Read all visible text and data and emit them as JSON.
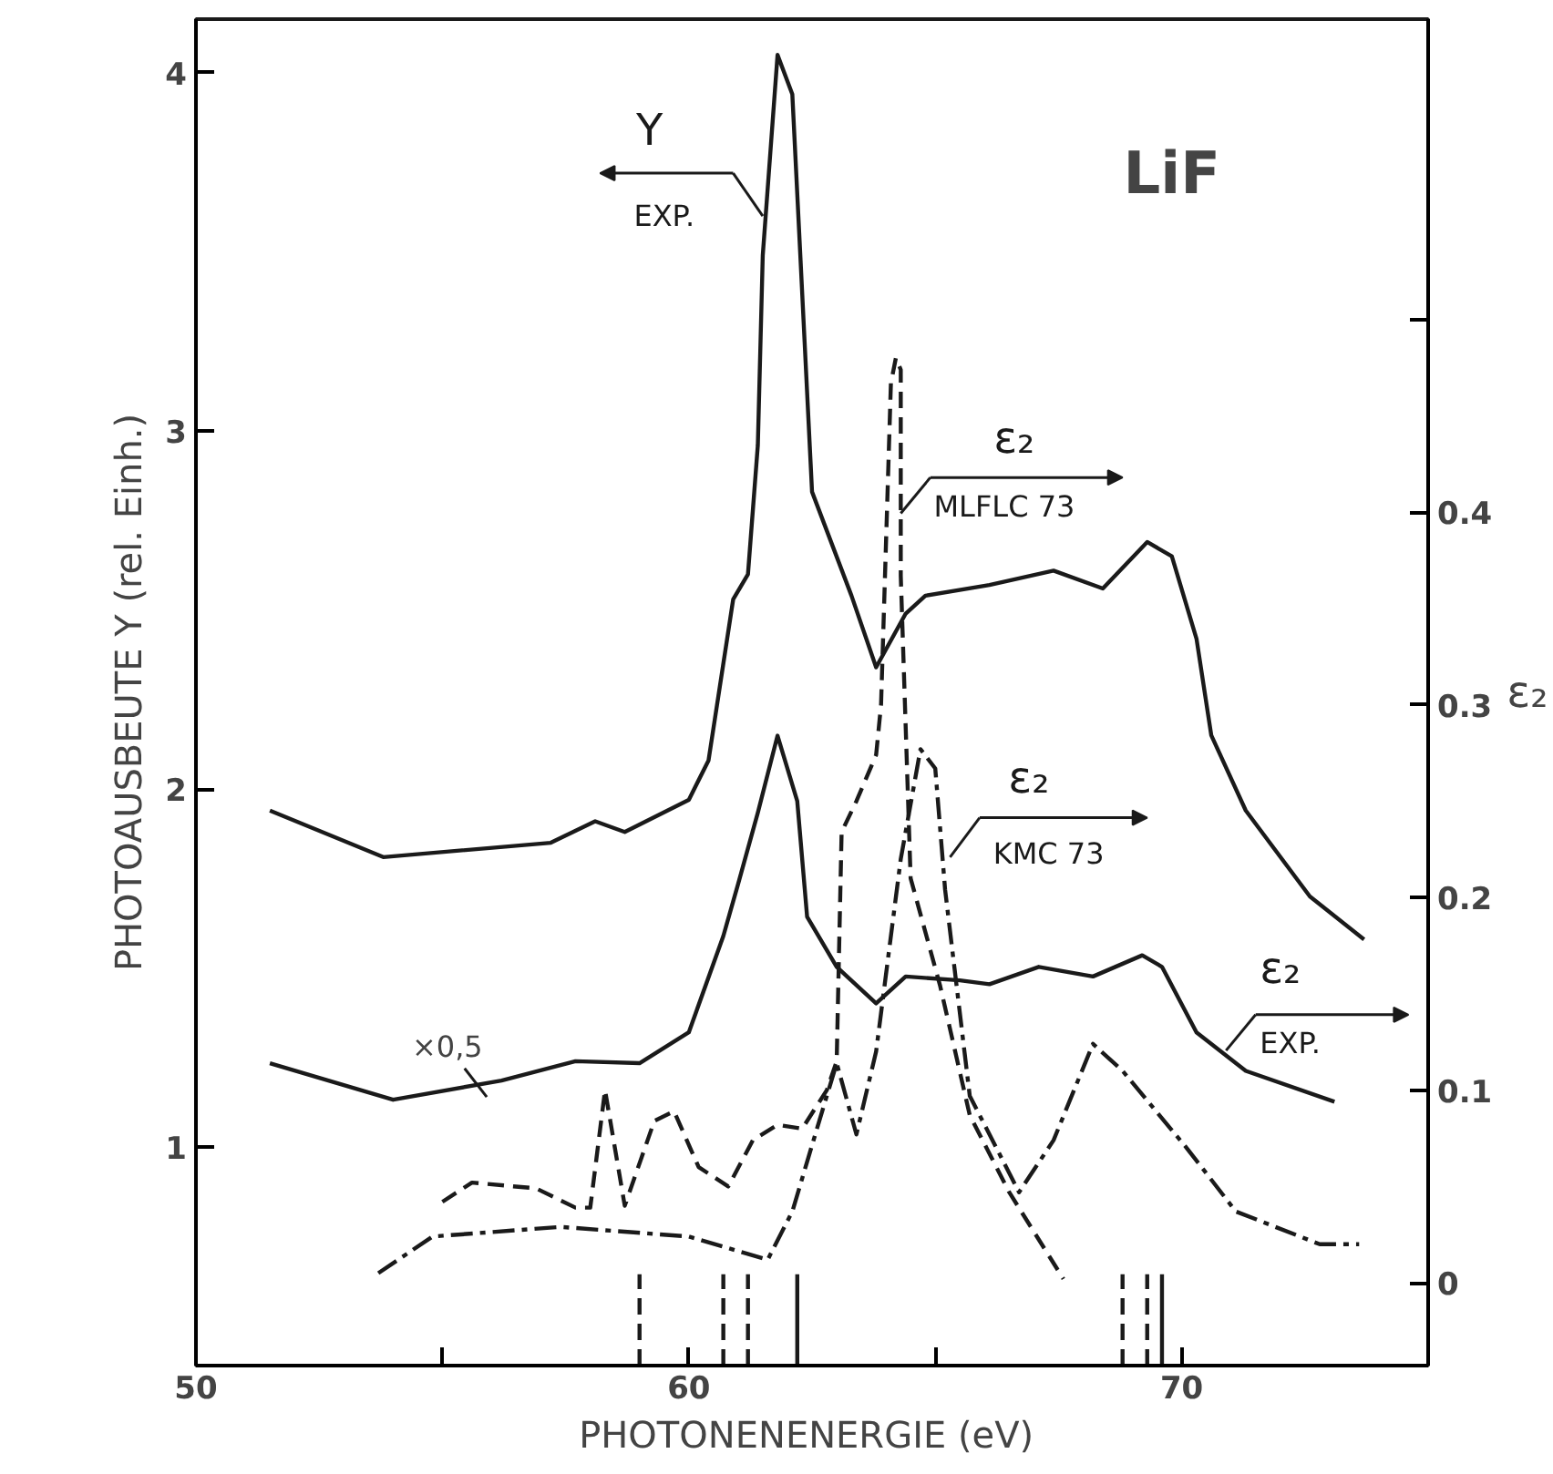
{
  "chart_data": {
    "type": "line",
    "title": "LiF",
    "xlabel": "PHOTONENENERGIE  (eV)",
    "ylabel": "PHOTOAUSBEUTE Y (rel. Einh.)",
    "y2label": "ε₂",
    "xlim": [
      50,
      75
    ],
    "xticks": [
      50,
      {
        "value": 55,
        "label": null
      },
      60,
      {
        "value": 65,
        "label": null
      },
      70
    ],
    "ylim": [
      0.39,
      4.15
    ],
    "yticks": [
      1,
      2,
      3,
      4
    ],
    "y2lim": [
      -0.043,
      0.656
    ],
    "y2ticks": [
      0,
      0.1,
      0.2,
      0.3,
      0.4,
      {
        "value": 0.5,
        "label": null
      }
    ],
    "grid": false,
    "legend": "top right",
    "marker": "none",
    "annotations": [
      "×0,5"
    ],
    "series": [
      {
        "name": "Y EXP.",
        "color": "#1a1a1a",
        "line_style": "solid",
        "x": [
          51.5,
          53.8,
          57.2,
          58.1,
          58.7,
          60.0,
          60.4,
          60.9,
          61.2,
          61.4,
          61.5,
          61.8,
          62.1,
          62.5,
          63.3,
          63.8,
          64.4,
          64.8,
          66.1,
          67.4,
          68.4,
          69.3,
          69.8,
          70.3,
          70.6,
          71.3,
          72.6,
          73.7
        ],
        "values": [
          1.94,
          1.81,
          1.85,
          1.91,
          1.88,
          1.97,
          2.08,
          2.53,
          2.6,
          2.96,
          3.49,
          4.05,
          3.94,
          2.83,
          2.54,
          2.34,
          2.49,
          2.54,
          2.57,
          2.61,
          2.56,
          2.69,
          2.65,
          2.42,
          2.15,
          1.94,
          1.7,
          1.58
        ]
      },
      {
        "name": "ε₂ MLFLC 73",
        "color": "#1a1a1a",
        "axis": "y2",
        "line_style": "dashed",
        "x": [
          55.0,
          55.6,
          56.9,
          57.7,
          58.0,
          58.3,
          58.7,
          59.3,
          59.7,
          60.2,
          60.8,
          61.3,
          61.8,
          62.3,
          62.8,
          63.0,
          63.1,
          63.4,
          63.8,
          63.9,
          64.1,
          64.2,
          64.3,
          64.3,
          64.5,
          65.1,
          65.7,
          66.5,
          67.6
        ],
        "values": [
          0.042,
          0.052,
          0.049,
          0.039,
          0.039,
          0.1,
          0.04,
          0.084,
          0.089,
          0.06,
          0.05,
          0.074,
          0.082,
          0.08,
          0.1,
          0.115,
          0.234,
          0.25,
          0.274,
          0.3,
          0.467,
          0.48,
          0.474,
          0.367,
          0.21,
          0.154,
          0.087,
          0.047,
          0.002
        ]
      },
      {
        "name": "ε₂ KMC 73",
        "color": "#1a1a1a",
        "axis": "y2",
        "line_style": "dashdot",
        "x": [
          53.7,
          54.8,
          57.4,
          60.0,
          61.6,
          62.1,
          62.6,
          63.0,
          63.4,
          63.8,
          64.3,
          64.7,
          65.0,
          65.2,
          65.7,
          66.7,
          67.4,
          68.2,
          68.8,
          70.1,
          71.1,
          72.8,
          73.6
        ],
        "values": [
          0.005,
          0.024,
          0.029,
          0.024,
          0.012,
          0.037,
          0.08,
          0.114,
          0.077,
          0.12,
          0.22,
          0.277,
          0.267,
          0.204,
          0.097,
          0.047,
          0.074,
          0.124,
          0.11,
          0.07,
          0.037,
          0.02,
          0.02
        ]
      },
      {
        "name": "ε₂ EXP.",
        "color": "#1a1a1a",
        "axis": "y2",
        "line_style": "solid",
        "x": [
          51.5,
          54.0,
          56.2,
          57.7,
          59.0,
          60.0,
          60.7,
          61.0,
          61.4,
          61.8,
          62.2,
          62.4,
          63.0,
          63.8,
          64.4,
          65.5,
          66.1,
          67.1,
          68.2,
          69.2,
          69.6,
          70.3,
          71.3,
          73.1
        ],
        "values": [
          0.114,
          0.095,
          0.105,
          0.115,
          0.114,
          0.13,
          0.18,
          0.207,
          0.244,
          0.284,
          0.25,
          0.19,
          0.164,
          0.145,
          0.159,
          0.157,
          0.155,
          0.164,
          0.159,
          0.17,
          0.164,
          0.13,
          0.11,
          0.094
        ]
      },
      {
        "color": "#1a1a1a",
        "line_style": "dashed",
        "x": [
          59.0,
          59.0
        ],
        "values": [
          0.39,
          0.645
        ]
      },
      {
        "color": "#1a1a1a",
        "line_style": "dashed",
        "x": [
          60.7,
          60.7
        ],
        "values": [
          0.39,
          0.645
        ]
      },
      {
        "color": "#1a1a1a",
        "line_style": "dashed",
        "x": [
          61.2,
          61.2
        ],
        "values": [
          0.39,
          0.645
        ]
      },
      {
        "color": "#1a1a1a",
        "line_style": "solid",
        "x": [
          62.2,
          62.2
        ],
        "values": [
          0.39,
          0.645
        ]
      },
      {
        "color": "#1a1a1a",
        "line_style": "dashed",
        "x": [
          68.8,
          68.8
        ],
        "values": [
          0.39,
          0.645
        ]
      },
      {
        "color": "#1a1a1a",
        "line_style": "dashed",
        "x": [
          69.3,
          69.3
        ],
        "values": [
          0.39,
          0.645
        ]
      },
      {
        "color": "#1a1a1a",
        "line_style": "solid",
        "x": [
          69.6,
          69.6
        ],
        "values": [
          0.39,
          0.645
        ]
      }
    ]
  }
}
